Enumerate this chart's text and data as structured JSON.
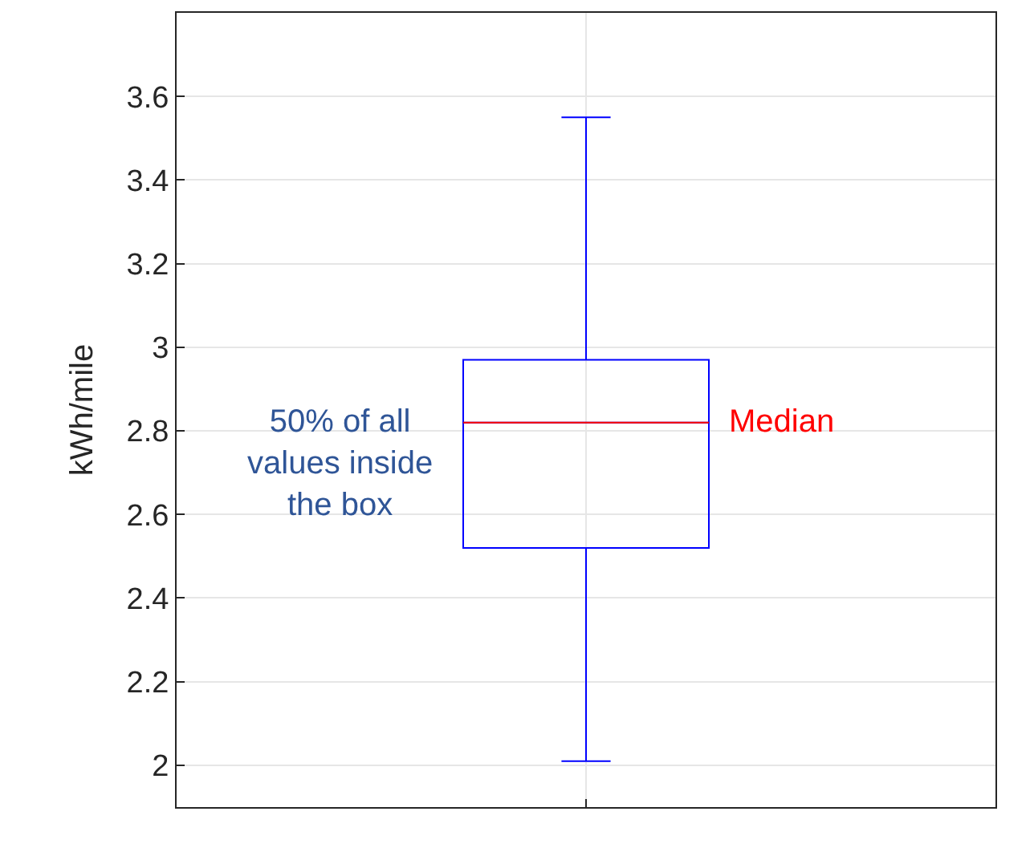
{
  "chart_data": {
    "type": "box",
    "ylabel": "kWh/mile",
    "categories": [
      null
    ],
    "series": [
      {
        "color": "#0000ff",
        "boxes": [
          {
            "low": 2.01,
            "q1": 2.52,
            "median": 2.82,
            "q3": 2.97,
            "high": 3.55
          }
        ]
      }
    ],
    "ylim": [
      1.9,
      3.8
    ],
    "yticks": [
      2,
      2.2,
      2.4,
      2.6,
      2.8,
      3,
      3.2,
      3.4,
      3.6
    ],
    "grid": true,
    "tick_labels": "y",
    "legend": false,
    "annotations": [
      "50% of all values inside the box",
      "Median"
    ]
  }
}
